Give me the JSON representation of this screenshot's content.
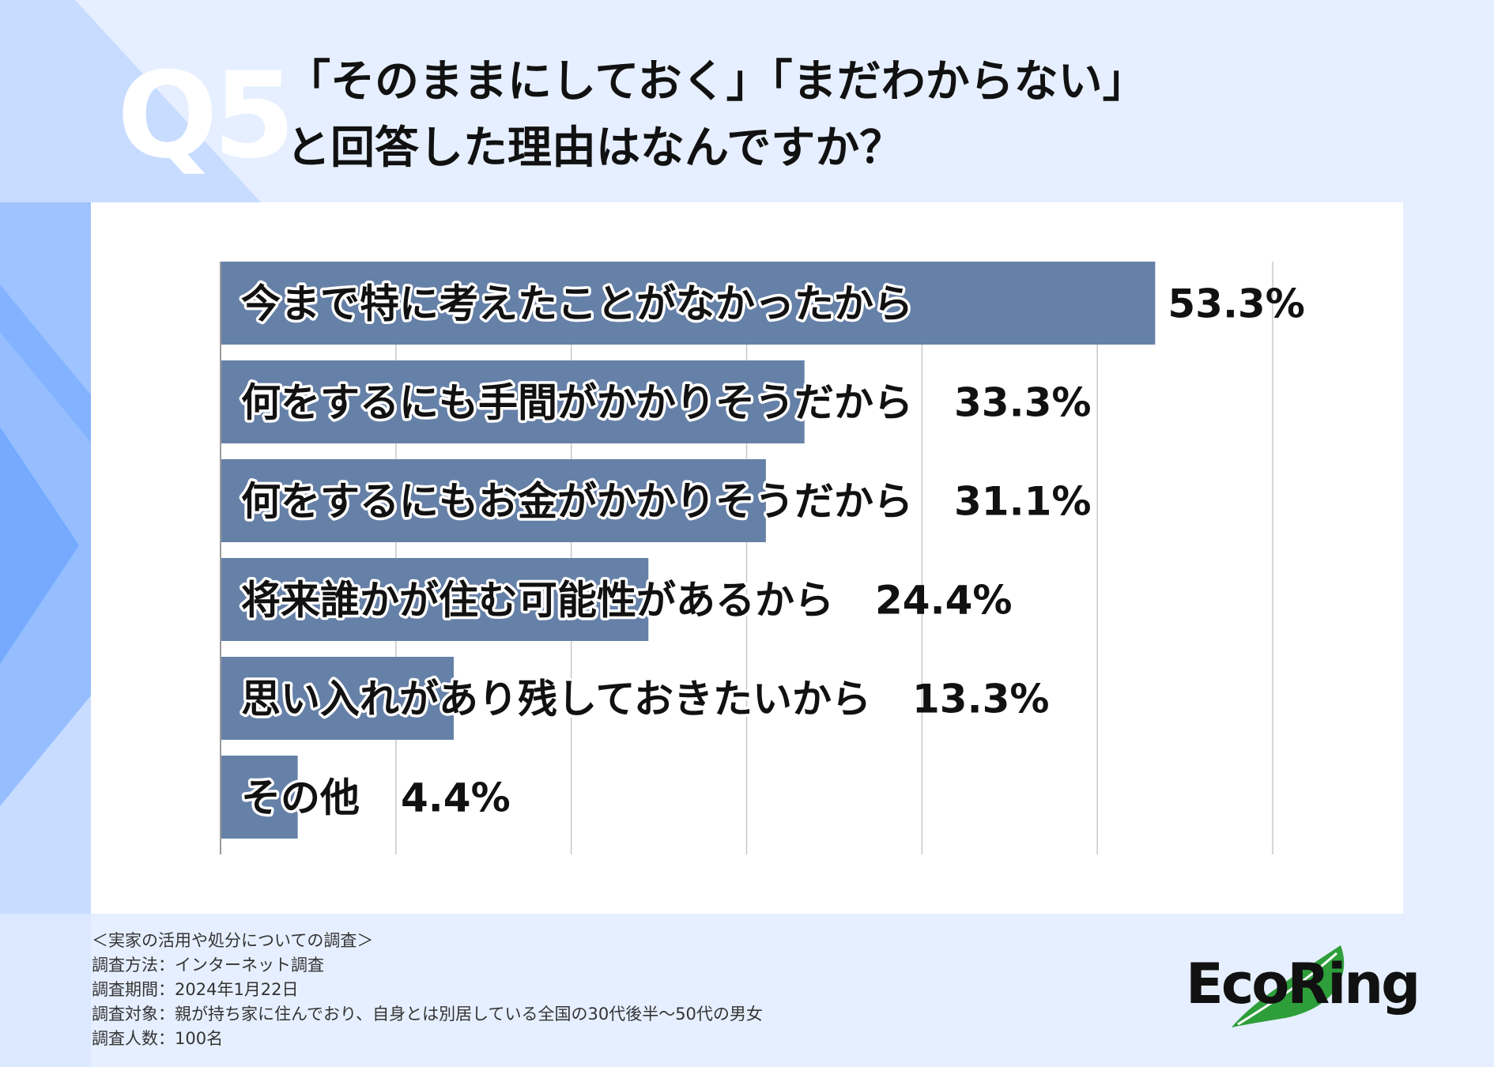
{
  "page": {
    "q_label": "Q5",
    "title_line1": "「そのままにしておく」「まだわからない」",
    "title_line2": "と回答した理由はなんですか？"
  },
  "chart_data": {
    "type": "bar",
    "orientation": "horizontal",
    "categories": [
      "今まで特に考えたことがなかったから",
      "何をするにも手間がかかりそうだから",
      "何をするにもお金がかかりそうだから",
      "将来誰かが住む可能性があるから",
      "思い入れがあり残しておきたいから",
      "その他"
    ],
    "values": [
      53.3,
      33.3,
      31.1,
      24.4,
      13.3,
      4.4
    ],
    "value_labels": [
      "53.3%",
      "33.3%",
      "31.1%",
      "24.4%",
      "13.3%",
      "4.4%"
    ],
    "xlim": [
      0,
      60
    ],
    "grid": true,
    "bar_color": "#6681a8"
  },
  "notes": {
    "survey_name": "＜実家の活用や処分についての調査＞",
    "method": "調査方法：インターネット調査",
    "period": "調査期間：2024年1月22日",
    "target": "調査対象：親が持ち家に住んでおり、自身とは別居している全国の30代後半〜50代の男女",
    "count": "調査人数：100名"
  },
  "logo": {
    "text": "EcoRing",
    "leaf_color": "#2e9e3a"
  },
  "colors": {
    "background": "#e6efff",
    "accent_dark": "#5f9cff",
    "accent_light": "#bcd6ff"
  }
}
